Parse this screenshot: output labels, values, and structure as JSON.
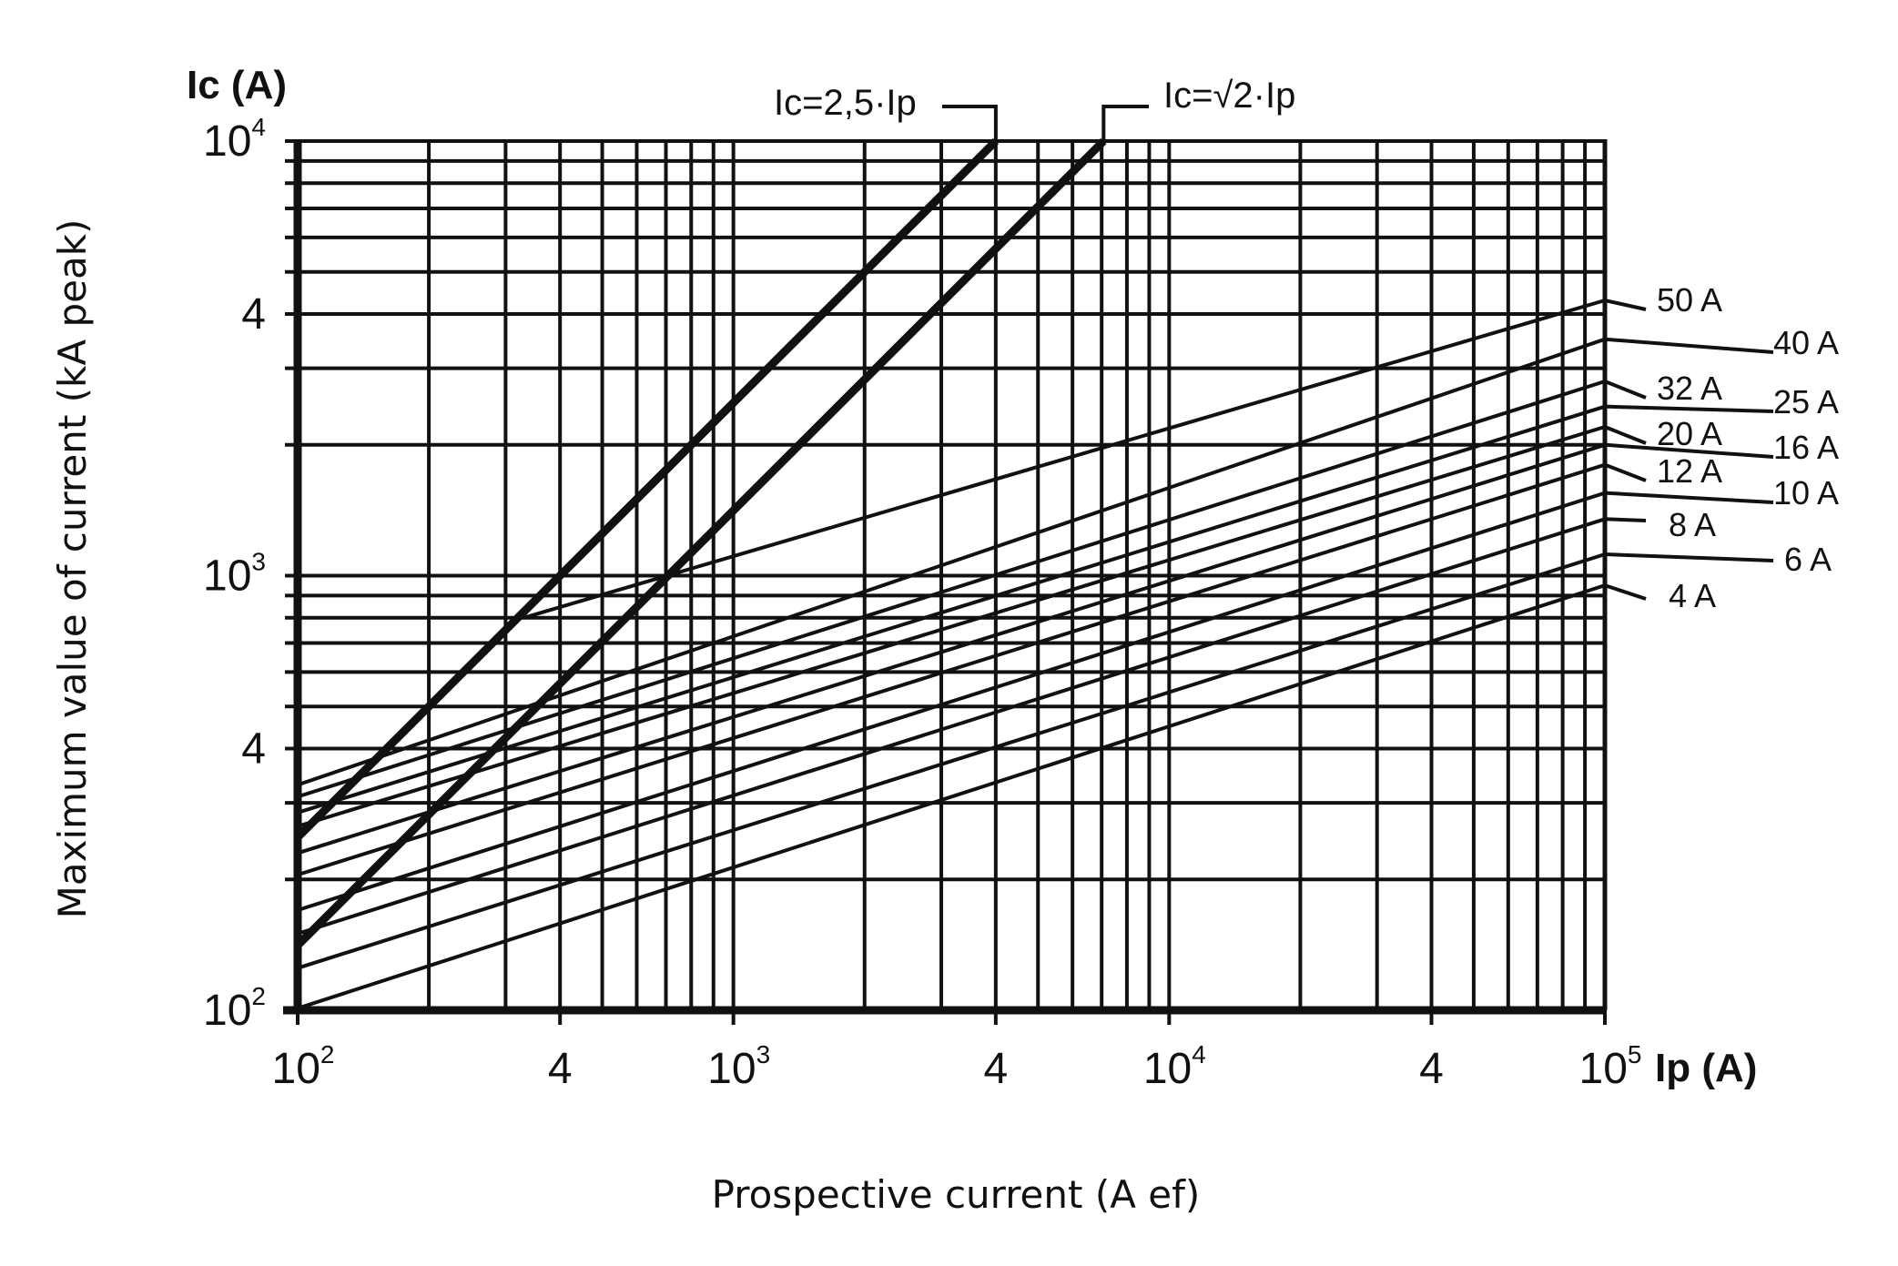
{
  "chart_data": {
    "type": "line",
    "title": "",
    "ylabel": "Maximum value of current (kA peak)",
    "xlabel": "Prospective current (A ef)",
    "y_axis_symbol": "Ic (A)",
    "x_axis_symbol": "Ip (A)",
    "x_scale": "log",
    "y_scale": "log",
    "xlim": [
      100,
      100000
    ],
    "ylim": [
      100,
      10000
    ],
    "grid": true,
    "x_tick_labels": [
      {
        "value": 100,
        "base": "10",
        "exp": "2"
      },
      {
        "value": 400,
        "base": "4",
        "exp": ""
      },
      {
        "value": 1000,
        "base": "10",
        "exp": "3"
      },
      {
        "value": 4000,
        "base": "4",
        "exp": ""
      },
      {
        "value": 10000,
        "base": "10",
        "exp": "4"
      },
      {
        "value": 40000,
        "base": "4",
        "exp": ""
      },
      {
        "value": 100000,
        "base": "10",
        "exp": "5"
      }
    ],
    "y_tick_labels": [
      {
        "value": 100,
        "base": "10",
        "exp": "2"
      },
      {
        "value": 400,
        "base": "4",
        "exp": ""
      },
      {
        "value": 1000,
        "base": "10",
        "exp": "3"
      },
      {
        "value": 4000,
        "base": "4",
        "exp": ""
      },
      {
        "value": 10000,
        "base": "10",
        "exp": "4"
      }
    ],
    "reference_lines": [
      {
        "name": "Ic=2,5·Ip",
        "x": [
          100,
          4000
        ],
        "y": [
          250,
          10000
        ]
      },
      {
        "name": "Ic=√2·Ip",
        "x": [
          100,
          7070
        ],
        "y": [
          141,
          10000
        ]
      }
    ],
    "series": [
      {
        "name": "50 A",
        "x": [
          330,
          100000
        ],
        "y": [
          800,
          4300
        ]
      },
      {
        "name": "40 A",
        "x": [
          100,
          100000
        ],
        "y": [
          330,
          3500
        ]
      },
      {
        "name": "32 A",
        "x": [
          100,
          100000
        ],
        "y": [
          310,
          2800
        ]
      },
      {
        "name": "25 A",
        "x": [
          100,
          100000
        ],
        "y": [
          285,
          2450
        ]
      },
      {
        "name": "20 A",
        "x": [
          100,
          100000
        ],
        "y": [
          265,
          2200
        ]
      },
      {
        "name": "16 A",
        "x": [
          100,
          100000
        ],
        "y": [
          230,
          2000
        ]
      },
      {
        "name": "12 A",
        "x": [
          100,
          100000
        ],
        "y": [
          205,
          1800
        ]
      },
      {
        "name": "10 A",
        "x": [
          100,
          100000
        ],
        "y": [
          170,
          1550
        ]
      },
      {
        "name": "8 A",
        "x": [
          100,
          100000
        ],
        "y": [
          150,
          1350
        ]
      },
      {
        "name": "6 A",
        "x": [
          100,
          100000
        ],
        "y": [
          125,
          1120
        ]
      },
      {
        "name": "4 A",
        "x": [
          100,
          100000
        ],
        "y": [
          101,
          950
        ]
      }
    ]
  }
}
